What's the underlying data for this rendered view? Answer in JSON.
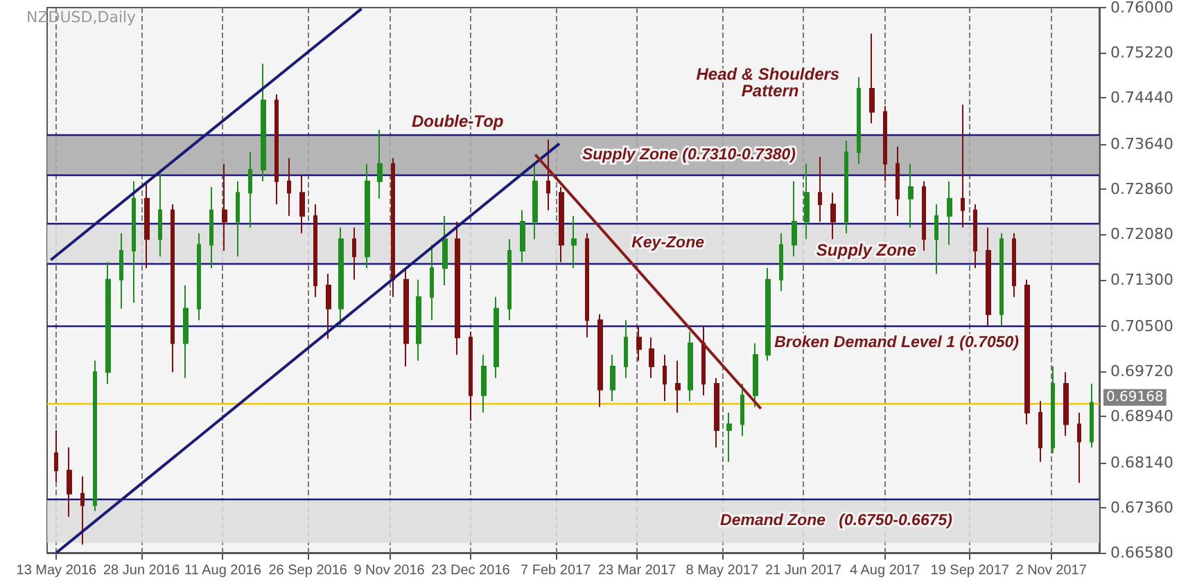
{
  "chart_data": {
    "type": "candlestick",
    "title": "NZDUSD,Daily",
    "x": [
      "2016-05-13",
      "2016-05-20",
      "2016-05-27",
      "2016-06-03",
      "2016-06-10",
      "2016-06-17",
      "2016-06-24",
      "2016-07-01",
      "2016-07-08",
      "2016-07-15",
      "2016-07-22",
      "2016-07-29",
      "2016-08-05",
      "2016-08-12",
      "2016-08-19",
      "2016-08-26",
      "2016-09-02",
      "2016-09-09",
      "2016-09-16",
      "2016-09-23",
      "2016-09-30",
      "2016-10-07",
      "2016-10-14",
      "2016-10-21",
      "2016-10-28",
      "2016-11-04",
      "2016-11-11",
      "2016-11-18",
      "2016-11-25",
      "2016-12-02",
      "2016-12-09",
      "2016-12-16",
      "2016-12-23",
      "2016-12-30",
      "2017-01-06",
      "2017-01-13",
      "2017-01-20",
      "2017-01-27",
      "2017-02-03",
      "2017-02-10",
      "2017-02-17",
      "2017-02-24",
      "2017-03-03",
      "2017-03-10",
      "2017-03-17",
      "2017-03-24",
      "2017-03-31",
      "2017-04-07",
      "2017-04-14",
      "2017-04-21",
      "2017-04-28",
      "2017-05-05",
      "2017-05-12",
      "2017-05-19",
      "2017-05-26",
      "2017-06-02",
      "2017-06-09",
      "2017-06-16",
      "2017-06-23",
      "2017-06-30",
      "2017-07-07",
      "2017-07-14",
      "2017-07-21",
      "2017-07-28",
      "2017-08-04",
      "2017-08-11",
      "2017-08-18",
      "2017-08-25",
      "2017-09-01",
      "2017-09-08",
      "2017-09-15",
      "2017-09-22",
      "2017-09-29",
      "2017-10-06",
      "2017-10-13",
      "2017-10-20",
      "2017-10-27",
      "2017-11-03",
      "2017-11-10",
      "2017-11-17",
      "2017-11-24"
    ],
    "ohlc": [
      [
        0.683,
        0.687,
        0.678,
        0.68
      ],
      [
        0.68,
        0.684,
        0.672,
        0.676
      ],
      [
        0.676,
        0.679,
        0.6672,
        0.674
      ],
      [
        0.674,
        0.699,
        0.673,
        0.697
      ],
      [
        0.697,
        0.716,
        0.695,
        0.713
      ],
      [
        0.713,
        0.721,
        0.708,
        0.718
      ],
      [
        0.718,
        0.73,
        0.709,
        0.727
      ],
      [
        0.727,
        0.73,
        0.715,
        0.72
      ],
      [
        0.72,
        0.732,
        0.717,
        0.725
      ],
      [
        0.725,
        0.726,
        0.697,
        0.702
      ],
      [
        0.702,
        0.712,
        0.696,
        0.708
      ],
      [
        0.708,
        0.721,
        0.706,
        0.719
      ],
      [
        0.719,
        0.729,
        0.715,
        0.725
      ],
      [
        0.725,
        0.733,
        0.718,
        0.723
      ],
      [
        0.723,
        0.73,
        0.717,
        0.728
      ],
      [
        0.728,
        0.735,
        0.722,
        0.732
      ],
      [
        0.732,
        0.7503,
        0.73,
        0.744
      ],
      [
        0.744,
        0.745,
        0.726,
        0.73
      ],
      [
        0.73,
        0.734,
        0.724,
        0.728
      ],
      [
        0.728,
        0.731,
        0.721,
        0.724
      ],
      [
        0.724,
        0.726,
        0.71,
        0.712
      ],
      [
        0.712,
        0.714,
        0.7028,
        0.708
      ],
      [
        0.708,
        0.722,
        0.705,
        0.72
      ],
      [
        0.72,
        0.722,
        0.713,
        0.717
      ],
      [
        0.717,
        0.733,
        0.715,
        0.73
      ],
      [
        0.73,
        0.7389,
        0.727,
        0.733
      ],
      [
        0.733,
        0.734,
        0.71,
        0.713
      ],
      [
        0.713,
        0.715,
        0.698,
        0.702
      ],
      [
        0.702,
        0.713,
        0.699,
        0.71
      ],
      [
        0.71,
        0.719,
        0.706,
        0.715
      ],
      [
        0.715,
        0.724,
        0.712,
        0.72
      ],
      [
        0.72,
        0.723,
        0.7,
        0.703
      ],
      [
        0.703,
        0.704,
        0.6886,
        0.693
      ],
      [
        0.693,
        0.7,
        0.69,
        0.698
      ],
      [
        0.698,
        0.71,
        0.696,
        0.708
      ],
      [
        0.708,
        0.72,
        0.706,
        0.718
      ],
      [
        0.718,
        0.725,
        0.716,
        0.723
      ],
      [
        0.723,
        0.733,
        0.72,
        0.73
      ],
      [
        0.73,
        0.7372,
        0.725,
        0.728
      ],
      [
        0.728,
        0.729,
        0.716,
        0.719
      ],
      [
        0.719,
        0.724,
        0.715,
        0.72
      ],
      [
        0.72,
        0.721,
        0.703,
        0.706
      ],
      [
        0.706,
        0.707,
        0.691,
        0.694
      ],
      [
        0.694,
        0.7,
        0.692,
        0.698
      ],
      [
        0.698,
        0.706,
        0.696,
        0.703
      ],
      [
        0.703,
        0.705,
        0.699,
        0.701
      ],
      [
        0.701,
        0.703,
        0.696,
        0.698
      ],
      [
        0.698,
        0.7,
        0.692,
        0.695
      ],
      [
        0.695,
        0.699,
        0.69,
        0.694
      ],
      [
        0.694,
        0.704,
        0.692,
        0.702
      ],
      [
        0.702,
        0.705,
        0.693,
        0.695
      ],
      [
        0.695,
        0.696,
        0.684,
        0.687
      ],
      [
        0.687,
        0.69,
        0.6815,
        0.688
      ],
      [
        0.688,
        0.695,
        0.686,
        0.693
      ],
      [
        0.693,
        0.702,
        0.691,
        0.7
      ],
      [
        0.7,
        0.715,
        0.699,
        0.713
      ],
      [
        0.713,
        0.721,
        0.711,
        0.719
      ],
      [
        0.719,
        0.73,
        0.717,
        0.723
      ],
      [
        0.723,
        0.733,
        0.72,
        0.728
      ],
      [
        0.728,
        0.7342,
        0.723,
        0.726
      ],
      [
        0.726,
        0.728,
        0.72,
        0.723
      ],
      [
        0.723,
        0.737,
        0.721,
        0.735
      ],
      [
        0.735,
        0.748,
        0.733,
        0.746
      ],
      [
        0.746,
        0.7555,
        0.74,
        0.742
      ],
      [
        0.742,
        0.743,
        0.73,
        0.733
      ],
      [
        0.733,
        0.736,
        0.724,
        0.727
      ],
      [
        0.727,
        0.733,
        0.722,
        0.729
      ],
      [
        0.729,
        0.73,
        0.718,
        0.72
      ],
      [
        0.72,
        0.726,
        0.714,
        0.724
      ],
      [
        0.724,
        0.73,
        0.719,
        0.727
      ],
      [
        0.727,
        0.7432,
        0.722,
        0.725
      ],
      [
        0.725,
        0.726,
        0.715,
        0.718
      ],
      [
        0.718,
        0.722,
        0.705,
        0.707
      ],
      [
        0.707,
        0.721,
        0.705,
        0.72
      ],
      [
        0.72,
        0.721,
        0.71,
        0.712
      ],
      [
        0.712,
        0.713,
        0.688,
        0.69
      ],
      [
        0.69,
        0.692,
        0.6815,
        0.684
      ],
      [
        0.684,
        0.698,
        0.683,
        0.695
      ],
      [
        0.695,
        0.697,
        0.686,
        0.688
      ],
      [
        0.688,
        0.69,
        0.6779,
        0.685
      ],
      [
        0.685,
        0.695,
        0.684,
        0.6917
      ]
    ],
    "colors": [
      "#7b1010",
      "#7b1010",
      "#7b1010",
      "#1e8c1e",
      "#1e8c1e",
      "#1e8c1e",
      "#1e8c1e",
      "#7b1010",
      "#1e8c1e",
      "#7b1010",
      "#1e8c1e",
      "#1e8c1e",
      "#1e8c1e",
      "#7b1010",
      "#1e8c1e",
      "#1e8c1e",
      "#1e8c1e",
      "#7b1010",
      "#7b1010",
      "#7b1010",
      "#7b1010",
      "#7b1010",
      "#1e8c1e",
      "#7b1010",
      "#1e8c1e",
      "#1e8c1e",
      "#7b1010",
      "#7b1010",
      "#1e8c1e",
      "#1e8c1e",
      "#1e8c1e",
      "#7b1010",
      "#7b1010",
      "#1e8c1e",
      "#1e8c1e",
      "#1e8c1e",
      "#1e8c1e",
      "#1e8c1e",
      "#7b1010",
      "#7b1010",
      "#1e8c1e",
      "#7b1010",
      "#7b1010",
      "#1e8c1e",
      "#1e8c1e",
      "#7b1010",
      "#7b1010",
      "#7b1010",
      "#7b1010",
      "#1e8c1e",
      "#7b1010",
      "#7b1010",
      "#1e8c1e",
      "#1e8c1e",
      "#1e8c1e",
      "#1e8c1e",
      "#1e8c1e",
      "#1e8c1e",
      "#1e8c1e",
      "#7b1010",
      "#7b1010",
      "#1e8c1e",
      "#1e8c1e",
      "#7b1010",
      "#7b1010",
      "#7b1010",
      "#1e8c1e",
      "#7b1010",
      "#1e8c1e",
      "#1e8c1e",
      "#7b1010",
      "#7b1010",
      "#7b1010",
      "#1e8c1e",
      "#7b1010",
      "#7b1010",
      "#7b1010",
      "#1e8c1e",
      "#7b1010",
      "#7b1010",
      "#1e8c1e"
    ],
    "series": [
      {
        "type": "line",
        "color": "#1a1a78",
        "x": [
          "2016-05-10",
          "2016-10-25"
        ],
        "values": [
          0.7164,
          0.7598
        ]
      },
      {
        "type": "line",
        "color": "#1a1a78",
        "x": [
          "2016-05-13",
          "2017-02-09"
        ],
        "values": [
          0.6658,
          0.7365
        ]
      },
      {
        "type": "line",
        "color": "#8b1a1a",
        "x": [
          "2017-01-27",
          "2017-05-29"
        ],
        "values": [
          0.7346,
          0.6907
        ]
      }
    ],
    "xlim": [
      "2016-05-08",
      "2017-11-28"
    ],
    "xticks": [
      {
        "value": "2016-05-13",
        "label": "13 May 2016"
      },
      {
        "value": "2016-06-28",
        "label": "28 Jun 2016"
      },
      {
        "value": "2016-08-11",
        "label": "11 Aug 2016"
      },
      {
        "value": "2016-09-26",
        "label": "26 Sep 2016"
      },
      {
        "value": "2016-11-09",
        "label": "9 Nov 2016"
      },
      {
        "value": "2016-12-23",
        "label": "23 Dec 2016"
      },
      {
        "value": "2017-02-07",
        "label": "7 Feb 2017"
      },
      {
        "value": "2017-03-23",
        "label": "23 Mar 2017"
      },
      {
        "value": "2017-05-08",
        "label": "8 May 2017"
      },
      {
        "value": "2017-06-21",
        "label": "21 Jun 2017"
      },
      {
        "value": "2017-08-04",
        "label": "4 Aug 2017"
      },
      {
        "value": "2017-09-19",
        "label": "19 Sep 2017"
      },
      {
        "value": "2017-11-02",
        "label": "2 Nov 2017"
      }
    ],
    "ylim": [
      0.6658,
      0.76
    ],
    "yticks": [
      {
        "value": 0.6658,
        "label": "0.66580"
      },
      {
        "value": 0.6736,
        "label": "0.67360"
      },
      {
        "value": 0.6814,
        "label": "0.68140"
      },
      {
        "value": 0.6894,
        "label": "0.68940"
      },
      {
        "value": 0.6972,
        "label": "0.69720"
      },
      {
        "value": 0.705,
        "label": "0.70500"
      },
      {
        "value": 0.713,
        "label": "0.71300"
      },
      {
        "value": 0.7208,
        "label": "0.72080"
      },
      {
        "value": 0.7286,
        "label": "0.72860"
      },
      {
        "value": 0.7364,
        "label": "0.73640"
      },
      {
        "value": 0.7444,
        "label": "0.74440"
      },
      {
        "value": 0.7522,
        "label": "0.75220"
      },
      {
        "value": 0.76,
        "label": "0.76000"
      }
    ],
    "bands": [
      {
        "axis": "y",
        "from": 0.731,
        "to": 0.738,
        "label": "Supply Zone (0.7310-0.7380)",
        "color": "#a9a9a9"
      },
      {
        "axis": "y",
        "from": 0.7157,
        "to": 0.7228,
        "label": "Key-Zone",
        "color": "#dcdcdc"
      },
      {
        "axis": "y",
        "from": 0.6675,
        "to": 0.675,
        "label": "Demand Zone   (0.6750-0.6675)",
        "color": "#dcdcdc"
      }
    ],
    "ref_lines": [
      {
        "axis": "y",
        "value": 0.738,
        "label": null,
        "color": "#1a1a78"
      },
      {
        "axis": "y",
        "value": 0.731,
        "label": null,
        "color": "#1a1a78"
      },
      {
        "axis": "y",
        "value": 0.7228,
        "label": null,
        "color": "#1a1a78"
      },
      {
        "axis": "y",
        "value": 0.7157,
        "label": null,
        "color": "#1a1a78"
      },
      {
        "axis": "y",
        "value": 0.705,
        "label": "Broken Demand Level 1 (0.7050)",
        "color": "#1a1a78"
      },
      {
        "axis": "y",
        "value": 0.675,
        "label": null,
        "color": "#1a1a78"
      },
      {
        "axis": "y",
        "value": 0.69168,
        "label": "0.69168",
        "color": "#f0c800"
      }
    ],
    "annotations": [
      {
        "text": "Double-Top",
        "x": "2016-12-16",
        "y": 0.738
      },
      {
        "text": "Head & Shoulders Pattern",
        "x": "2017-07-24",
        "y": 0.7432
      },
      {
        "text": "Supply Zone",
        "x": "2017-07-25",
        "y": 0.7157
      }
    ],
    "grid": "x"
  }
}
